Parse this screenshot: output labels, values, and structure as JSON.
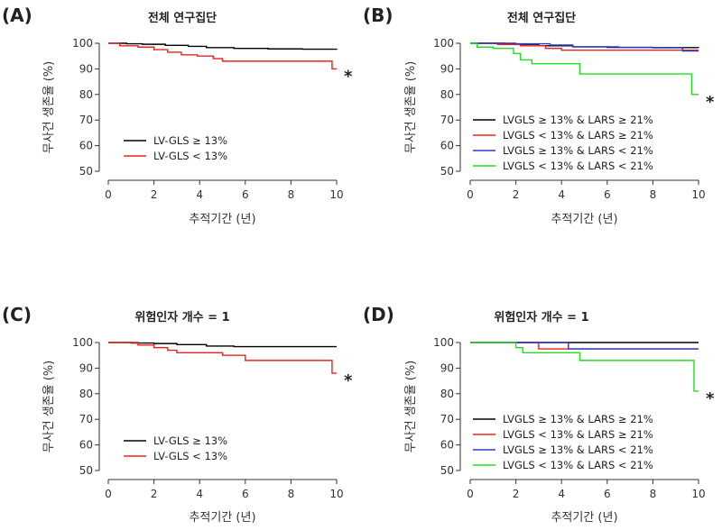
{
  "chart_data": [
    {
      "type": "line",
      "panel_label": "(A)",
      "title": "전체 연구집단",
      "xlabel": "추적기간 (년)",
      "ylabel": "무사건 생존율 (%)",
      "xlim": [
        0,
        10
      ],
      "ylim": [
        50,
        100
      ],
      "xticks": [
        "0",
        "2",
        "4",
        "6",
        "8",
        "10"
      ],
      "yticks": [
        "50",
        "60",
        "70",
        "80",
        "90",
        "100"
      ],
      "legend_position": "bottom-left",
      "annotation": "*",
      "series": [
        {
          "name": "LV-GLS ≥ 13%",
          "color": "#000000",
          "x": [
            0,
            0.8,
            1.5,
            2.5,
            3.5,
            4.3,
            5.5,
            7,
            8.5,
            10
          ],
          "y": [
            100,
            99.8,
            99.6,
            99.2,
            98.8,
            98.3,
            98.0,
            97.8,
            97.7,
            97.5
          ]
        },
        {
          "name": "LV-GLS < 13%",
          "color": "#e8231f",
          "x": [
            0,
            0.5,
            1.3,
            2.0,
            2.6,
            3.2,
            3.9,
            4.6,
            5.0,
            6.5,
            8.0,
            9.8,
            9.8,
            10
          ],
          "y": [
            100,
            99,
            98.5,
            97.5,
            96.5,
            95.5,
            95.0,
            94.0,
            93.0,
            93.0,
            93.0,
            93.0,
            90.0,
            90.0
          ]
        }
      ]
    },
    {
      "type": "line",
      "panel_label": "(B)",
      "title": "전체 연구집단",
      "xlabel": "추적기간 (년)",
      "ylabel": "무사건 생존율 (%)",
      "xlim": [
        0,
        10
      ],
      "ylim": [
        50,
        100
      ],
      "xticks": [
        "0",
        "2",
        "4",
        "6",
        "8",
        "10"
      ],
      "yticks": [
        "50",
        "60",
        "70",
        "80",
        "90",
        "100"
      ],
      "legend_position": "bottom-left",
      "annotation": "*",
      "series": [
        {
          "name": "LVGLS ≥ 13% & LARS ≥ 21%",
          "color": "#000000",
          "x": [
            0,
            1.5,
            3.0,
            4.5,
            6.0,
            8.0,
            10
          ],
          "y": [
            100,
            99.6,
            99.0,
            98.6,
            98.4,
            98.3,
            98.2
          ]
        },
        {
          "name": "LVGLS < 13% & LARS ≥ 21%",
          "color": "#e8231f",
          "x": [
            0,
            1.2,
            2.2,
            3.3,
            4.0,
            6.0,
            8.0,
            10
          ],
          "y": [
            100,
            99.5,
            99.0,
            98.0,
            97.3,
            97.3,
            97.3,
            97.3
          ]
        },
        {
          "name": "LVGLS ≥ 13% & LARS < 21%",
          "color": "#2a3cc8",
          "x": [
            0,
            2.0,
            3.5,
            4.5,
            6.5,
            8.0,
            9.3,
            10
          ],
          "y": [
            100,
            99.8,
            99.3,
            98.6,
            98.4,
            98.2,
            97.0,
            97.0
          ]
        },
        {
          "name": "LVGLS < 13% & LARS < 21%",
          "color": "#22dd22",
          "x": [
            0,
            0.3,
            1.0,
            1.9,
            2.2,
            2.7,
            3.5,
            4.3,
            4.8,
            6.5,
            8.0,
            9.7,
            9.7,
            10
          ],
          "y": [
            100,
            98.5,
            98.0,
            96.0,
            93.5,
            92.0,
            92.0,
            92.0,
            88.0,
            88.0,
            88.0,
            88.0,
            80.0,
            80.0
          ]
        }
      ]
    },
    {
      "type": "line",
      "panel_label": "(C)",
      "title": "위험인자 개수 = 1",
      "xlabel": "추적기간 (년)",
      "ylabel": "무사건 생존율 (%)",
      "xlim": [
        0,
        10
      ],
      "ylim": [
        50,
        100
      ],
      "xticks": [
        "0",
        "2",
        "4",
        "6",
        "8",
        "10"
      ],
      "yticks": [
        "50",
        "60",
        "70",
        "80",
        "90",
        "100"
      ],
      "legend_position": "bottom-left",
      "annotation": "*",
      "series": [
        {
          "name": "LV-GLS ≥ 13%",
          "color": "#000000",
          "x": [
            0,
            1.0,
            2.0,
            3.0,
            4.3,
            5.5,
            7.5,
            10
          ],
          "y": [
            100,
            99.8,
            99.6,
            99.2,
            98.6,
            98.4,
            98.4,
            98.4
          ]
        },
        {
          "name": "LV-GLS < 13%",
          "color": "#e8231f",
          "x": [
            0,
            1.3,
            2.0,
            2.6,
            3.0,
            4.0,
            5.0,
            6.0,
            8.0,
            9.8,
            9.8,
            10
          ],
          "y": [
            100,
            99.0,
            98.0,
            97.0,
            96.0,
            96.0,
            95.0,
            93.0,
            93.0,
            93.0,
            88.0,
            88.0
          ]
        }
      ]
    },
    {
      "type": "line",
      "panel_label": "(D)",
      "title": "위험인자 개수 = 1",
      "xlabel": "추적기간 (년)",
      "ylabel": "무사건 생존율 (%)",
      "xlim": [
        0,
        10
      ],
      "ylim": [
        50,
        100
      ],
      "xticks": [
        "0",
        "2",
        "4",
        "6",
        "8",
        "10"
      ],
      "yticks": [
        "50",
        "60",
        "70",
        "80",
        "90",
        "100"
      ],
      "legend_position": "bottom-left",
      "annotation": "*",
      "series": [
        {
          "name": "LVGLS ≥ 13% & LARS ≥ 21%",
          "color": "#000000",
          "x": [
            0,
            10
          ],
          "y": [
            100,
            100
          ]
        },
        {
          "name": "LVGLS < 13% & LARS ≥ 21%",
          "color": "#e8231f",
          "x": [
            0,
            3.0,
            3.0,
            10
          ],
          "y": [
            100,
            100,
            97.5,
            97.5
          ]
        },
        {
          "name": "LVGLS ≥ 13% & LARS < 21%",
          "color": "#2a3cc8",
          "x": [
            0,
            4.3,
            4.3,
            10
          ],
          "y": [
            100,
            100,
            97.5,
            97.5
          ]
        },
        {
          "name": "LVGLS < 13% & LARS < 21%",
          "color": "#22dd22",
          "x": [
            0,
            2.0,
            2.0,
            2.3,
            2.3,
            4.8,
            4.8,
            9.8,
            9.8,
            10
          ],
          "y": [
            100,
            100,
            98.0,
            98.0,
            96.0,
            96.0,
            93.0,
            93.0,
            81.0,
            81.0
          ]
        }
      ]
    }
  ]
}
